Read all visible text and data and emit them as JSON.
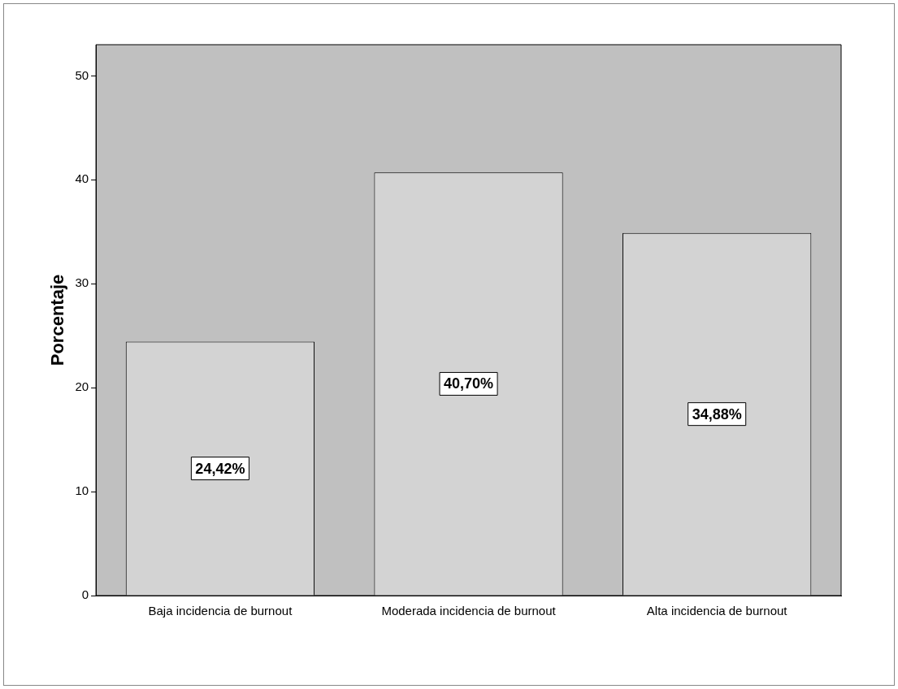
{
  "chart_data": {
    "type": "bar",
    "ylabel": "Porcentaje",
    "categories": [
      "Baja incidencia de burnout",
      "Moderada incidencia de burnout",
      "Alta incidencia de burnout"
    ],
    "values": [
      24.42,
      40.7,
      34.88
    ],
    "value_labels": [
      "24,42%",
      "40,70%",
      "34,88%"
    ],
    "color": "#d3d3d3",
    "ylim": [
      0,
      53
    ],
    "yticks": [
      0,
      10,
      20,
      30,
      40,
      50
    ],
    "grid": false,
    "legend": false
  }
}
